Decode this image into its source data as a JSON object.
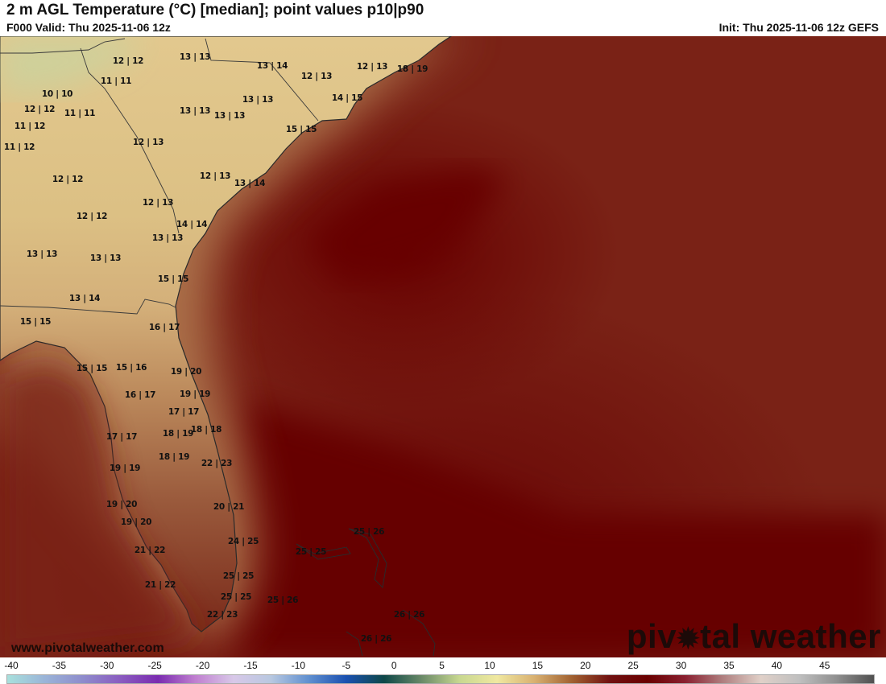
{
  "header": {
    "title": "2 m AGL Temperature (°C) [median]; point values p10|p90",
    "valid": "F000 Valid: Thu 2025-11-06 12z",
    "init": "Init: Thu 2025-11-06 12z GEFS"
  },
  "points": [
    "12 | 12",
    "13 | 13",
    "13 | 14",
    "12 | 13",
    "18 | 19",
    "11 | 11",
    "12 | 13",
    "10 | 10",
    "12 | 12",
    "11 | 11",
    "13 | 13",
    "13 | 13",
    "14 | 15",
    "13 | 13",
    "11 | 12",
    "15 | 15",
    "11 | 12",
    "12 | 13",
    "12 | 12",
    "12 | 13",
    "13 | 14",
    "12 | 13",
    "12 | 12",
    "14 | 14",
    "13 | 13",
    "13 | 13",
    "13 | 13",
    "15 | 15",
    "13 | 14",
    "15 | 15",
    "16 | 17",
    "15 | 15",
    "15 | 16",
    "19 | 20",
    "16 | 17",
    "19 | 19",
    "17 | 17",
    "18 | 18",
    "18 | 19",
    "17 | 17",
    "18 | 19",
    "22 | 23",
    "19 | 19",
    "19 | 20",
    "20 | 21",
    "19 | 20",
    "25 | 26",
    "24 | 25",
    "25 | 25",
    "21 | 22",
    "25 | 25",
    "21 | 22",
    "25 | 25",
    "25 | 26",
    "26 | 26",
    "22 | 23",
    "26 | 26"
  ],
  "watermark": {
    "site": "www.pivotalweather.com",
    "logo_left": "piv",
    "logo_right": "tal weather"
  },
  "colorbar": {
    "ticks": [
      "-40",
      "-35",
      "-30",
      "-25",
      "-20",
      "-15",
      "-10",
      "-5",
      "0",
      "5",
      "10",
      "15",
      "20",
      "25",
      "30",
      "35",
      "40",
      "45"
    ],
    "colors": [
      "#a8e0dc",
      "#9ab4d8",
      "#8e8ccc",
      "#8a5cc0",
      "#7a2cb0",
      "#c080d0",
      "#d8c8e8",
      "#b8c8e0",
      "#6090d0",
      "#1a50b0",
      "#0e4848",
      "#6a8a68",
      "#c8d890",
      "#f0e8a0",
      "#d8b070",
      "#a06030",
      "#701010",
      "#6a0000",
      "#8a2030",
      "#b08080",
      "#e0d0c8",
      "#c0c0c0",
      "#909090",
      "#505050"
    ]
  }
}
